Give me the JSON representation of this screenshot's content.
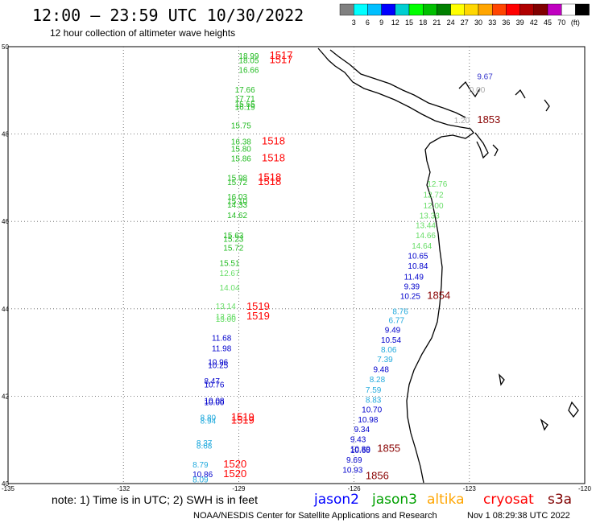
{
  "title": "12:00 – 23:59 UTC 10/30/2022",
  "subtitle": "12 hour collection of altimeter wave heights",
  "legend": {
    "colors": [
      "#808080",
      "#00ffff",
      "#00bfff",
      "#0000ff",
      "#00ced1",
      "#00ff00",
      "#00c000",
      "#008000",
      "#ffff00",
      "#ffd700",
      "#ffa500",
      "#ff4500",
      "#ff0000",
      "#b00000",
      "#800000",
      "#c000c0",
      "#ffffff",
      "#000000"
    ],
    "labels": [
      "3",
      "6",
      "9",
      "12",
      "15",
      "18",
      "21",
      "24",
      "27",
      "30",
      "33",
      "36",
      "39",
      "42",
      "45",
      "70",
      "(ft)"
    ]
  },
  "axes": {
    "lat_labels": [
      "50",
      "48",
      "46",
      "44",
      "42",
      "40"
    ],
    "lon_labels": [
      "-135",
      "-132",
      "-129",
      "-126",
      "-123",
      "-120"
    ]
  },
  "footer": {
    "note": "note: 1) Time is in UTC; 2) SWH is in feet",
    "credit": "NOAA/NESDIS Center for Satellite Applications and Research",
    "timestamp": "Nov  1 08:29:38 UTC 2022",
    "satellites": [
      {
        "name": "jason2",
        "color": "#0000ff"
      },
      {
        "name": "jason3",
        "color": "#00a000"
      },
      {
        "name": "altika",
        "color": "#ffa500"
      },
      {
        "name": "cryosat",
        "color": "#ff0000"
      },
      {
        "name": "s3a",
        "color": "#800000"
      }
    ]
  },
  "wave_labels": [
    {
      "text": "18.99",
      "lon": -129.0,
      "lat": 49.72,
      "color": "#22bb22"
    },
    {
      "text": "18.05",
      "lon": -129.0,
      "lat": 49.62,
      "color": "#22bb22"
    },
    {
      "text": "16.66",
      "lon": -129.0,
      "lat": 49.4,
      "color": "#22bb22"
    },
    {
      "text": "17.66",
      "lon": -129.1,
      "lat": 48.95,
      "color": "#22bb22"
    },
    {
      "text": "17.71",
      "lon": -129.1,
      "lat": 48.75,
      "color": "#22bb22"
    },
    {
      "text": "15.55",
      "lon": -129.1,
      "lat": 48.62,
      "color": "#22bb22"
    },
    {
      "text": "16.19",
      "lon": -129.1,
      "lat": 48.55,
      "color": "#22bb22"
    },
    {
      "text": "15.75",
      "lon": -129.2,
      "lat": 48.13,
      "color": "#22bb22"
    },
    {
      "text": "16.38",
      "lon": -129.2,
      "lat": 47.76,
      "color": "#22bb22"
    },
    {
      "text": "15.80",
      "lon": -129.2,
      "lat": 47.6,
      "color": "#22bb22"
    },
    {
      "text": "15.86",
      "lon": -129.2,
      "lat": 47.38,
      "color": "#22bb22"
    },
    {
      "text": "15.98",
      "lon": -129.3,
      "lat": 46.93,
      "color": "#22bb22"
    },
    {
      "text": "15.72",
      "lon": -129.3,
      "lat": 46.83,
      "color": "#22bb22"
    },
    {
      "text": "16.03",
      "lon": -129.3,
      "lat": 46.5,
      "color": "#22bb22"
    },
    {
      "text": "15.10",
      "lon": -129.3,
      "lat": 46.4,
      "color": "#22bb22"
    },
    {
      "text": "14.33",
      "lon": -129.3,
      "lat": 46.32,
      "color": "#22bb22"
    },
    {
      "text": "14.62",
      "lon": -129.3,
      "lat": 46.08,
      "color": "#22bb22"
    },
    {
      "text": "15.63",
      "lon": -129.4,
      "lat": 45.62,
      "color": "#22bb22"
    },
    {
      "text": "15.23",
      "lon": -129.4,
      "lat": 45.53,
      "color": "#22bb22"
    },
    {
      "text": "15.72",
      "lon": -129.4,
      "lat": 45.33,
      "color": "#22bb22"
    },
    {
      "text": "15.51",
      "lon": -129.5,
      "lat": 44.98,
      "color": "#22bb22"
    },
    {
      "text": "12.67",
      "lon": -129.5,
      "lat": 44.75,
      "color": "#66dd66"
    },
    {
      "text": "14.04",
      "lon": -129.5,
      "lat": 44.42,
      "color": "#66dd66"
    },
    {
      "text": "13.14",
      "lon": -129.6,
      "lat": 44.0,
      "color": "#66dd66"
    },
    {
      "text": "12.36",
      "lon": -129.6,
      "lat": 43.76,
      "color": "#66dd66"
    },
    {
      "text": "13.00",
      "lon": -129.6,
      "lat": 43.7,
      "color": "#66dd66"
    },
    {
      "text": "11.68",
      "lon": -129.7,
      "lat": 43.27,
      "color": "#0000cc"
    },
    {
      "text": "11.98",
      "lon": -129.7,
      "lat": 43.03,
      "color": "#0000cc"
    },
    {
      "text": "10.96",
      "lon": -129.8,
      "lat": 42.72,
      "color": "#0000cc"
    },
    {
      "text": "10.25",
      "lon": -129.8,
      "lat": 42.64,
      "color": "#0000cc"
    },
    {
      "text": "8.47",
      "lon": -129.9,
      "lat": 42.28,
      "color": "#0000cc"
    },
    {
      "text": "10.76",
      "lon": -129.9,
      "lat": 42.2,
      "color": "#0000cc"
    },
    {
      "text": "10.08",
      "lon": -129.9,
      "lat": 41.83,
      "color": "#0000cc"
    },
    {
      "text": "10.00",
      "lon": -129.9,
      "lat": 41.8,
      "color": "#0000cc"
    },
    {
      "text": "8.80",
      "lon": -130.0,
      "lat": 41.45,
      "color": "#22aadd"
    },
    {
      "text": "8.94",
      "lon": -130.0,
      "lat": 41.37,
      "color": "#22aadd"
    },
    {
      "text": "8.37",
      "lon": -130.1,
      "lat": 40.87,
      "color": "#22aadd"
    },
    {
      "text": "8.68",
      "lon": -130.1,
      "lat": 40.8,
      "color": "#22aadd"
    },
    {
      "text": "8.79",
      "lon": -130.2,
      "lat": 40.37,
      "color": "#22aadd"
    },
    {
      "text": "10.86",
      "lon": -130.2,
      "lat": 40.15,
      "color": "#0000cc"
    },
    {
      "text": "8.09",
      "lon": -130.2,
      "lat": 40.03,
      "color": "#22aadd"
    },
    {
      "text": "12.76",
      "lon": -124.1,
      "lat": 46.8,
      "color": "#66dd66"
    },
    {
      "text": "12.72",
      "lon": -124.2,
      "lat": 46.55,
      "color": "#66dd66"
    },
    {
      "text": "12.00",
      "lon": -124.2,
      "lat": 46.3,
      "color": "#66dd66"
    },
    {
      "text": "13.33",
      "lon": -124.3,
      "lat": 46.07,
      "color": "#66dd66"
    },
    {
      "text": "13.44",
      "lon": -124.4,
      "lat": 45.85,
      "color": "#66dd66"
    },
    {
      "text": "14.66",
      "lon": -124.4,
      "lat": 45.62,
      "color": "#66dd66"
    },
    {
      "text": "14.64",
      "lon": -124.5,
      "lat": 45.38,
      "color": "#66dd66"
    },
    {
      "text": "10.65",
      "lon": -124.6,
      "lat": 45.15,
      "color": "#0000cc"
    },
    {
      "text": "10.84",
      "lon": -124.6,
      "lat": 44.92,
      "color": "#0000cc"
    },
    {
      "text": "11.49",
      "lon": -124.7,
      "lat": 44.67,
      "color": "#0000cc"
    },
    {
      "text": "9.39",
      "lon": -124.7,
      "lat": 44.45,
      "color": "#0000cc"
    },
    {
      "text": "10.25",
      "lon": -124.8,
      "lat": 44.23,
      "color": "#0000cc"
    },
    {
      "text": "8.76",
      "lon": -125.0,
      "lat": 43.88,
      "color": "#22aadd"
    },
    {
      "text": "6.77",
      "lon": -125.1,
      "lat": 43.67,
      "color": "#22aadd"
    },
    {
      "text": "9.49",
      "lon": -125.2,
      "lat": 43.45,
      "color": "#0000cc"
    },
    {
      "text": "10.54",
      "lon": -125.3,
      "lat": 43.22,
      "color": "#0000cc"
    },
    {
      "text": "8.06",
      "lon": -125.3,
      "lat": 43.0,
      "color": "#22aadd"
    },
    {
      "text": "7.39",
      "lon": -125.4,
      "lat": 42.78,
      "color": "#22aadd"
    },
    {
      "text": "9.48",
      "lon": -125.5,
      "lat": 42.55,
      "color": "#0000cc"
    },
    {
      "text": "8.28",
      "lon": -125.6,
      "lat": 42.32,
      "color": "#22aadd"
    },
    {
      "text": "7.59",
      "lon": -125.7,
      "lat": 42.08,
      "color": "#22aadd"
    },
    {
      "text": "8.83",
      "lon": -125.7,
      "lat": 41.85,
      "color": "#22aadd"
    },
    {
      "text": "10.70",
      "lon": -125.8,
      "lat": 41.63,
      "color": "#0000cc"
    },
    {
      "text": "10.98",
      "lon": -125.9,
      "lat": 41.4,
      "color": "#0000cc"
    },
    {
      "text": "9.34",
      "lon": -126.0,
      "lat": 41.18,
      "color": "#0000cc"
    },
    {
      "text": "9.43",
      "lon": -126.1,
      "lat": 40.95,
      "color": "#0000cc"
    },
    {
      "text": "10.89",
      "lon": -126.1,
      "lat": 40.73,
      "color": "#0000cc"
    },
    {
      "text": "10.60",
      "lon": -126.1,
      "lat": 40.7,
      "color": "#0000cc"
    },
    {
      "text": "9.69",
      "lon": -126.2,
      "lat": 40.48,
      "color": "#0000cc"
    },
    {
      "text": "10.93",
      "lon": -126.3,
      "lat": 40.25,
      "color": "#0000cc"
    },
    {
      "text": "9.67",
      "lon": -122.8,
      "lat": 49.25,
      "color": "#3333cc"
    },
    {
      "text": "0.00",
      "lon": -123.0,
      "lat": 48.95,
      "color": "#aaaaaa"
    },
    {
      "text": "1.20",
      "lon": -123.4,
      "lat": 48.25,
      "color": "#aaaaaa"
    }
  ],
  "time_labels": [
    {
      "text": "1517",
      "lon": -128.2,
      "lat": 49.72,
      "color": "#ff0000"
    },
    {
      "text": "1517",
      "lon": -128.2,
      "lat": 49.62,
      "color": "#ff0000"
    },
    {
      "text": "1518",
      "lon": -128.4,
      "lat": 47.76,
      "color": "#ff0000"
    },
    {
      "text": "1518",
      "lon": -128.4,
      "lat": 47.38,
      "color": "#ff0000"
    },
    {
      "text": "1518",
      "lon": -128.5,
      "lat": 46.93,
      "color": "#ff0000"
    },
    {
      "text": "1518",
      "lon": -128.5,
      "lat": 46.83,
      "color": "#ff0000"
    },
    {
      "text": "1519",
      "lon": -128.8,
      "lat": 43.98,
      "color": "#ff0000"
    },
    {
      "text": "1519",
      "lon": -128.8,
      "lat": 43.76,
      "color": "#ff0000"
    },
    {
      "text": "1519",
      "lon": -129.2,
      "lat": 41.45,
      "color": "#ff0000"
    },
    {
      "text": "1519",
      "lon": -129.2,
      "lat": 41.37,
      "color": "#ff0000"
    },
    {
      "text": "1520",
      "lon": -129.4,
      "lat": 40.37,
      "color": "#ff0000"
    },
    {
      "text": "1520",
      "lon": -129.4,
      "lat": 40.15,
      "color": "#ff0000"
    },
    {
      "text": "1853",
      "lon": -122.8,
      "lat": 48.25,
      "color": "#880000"
    },
    {
      "text": "1854",
      "lon": -124.1,
      "lat": 44.23,
      "color": "#880000"
    },
    {
      "text": "1855",
      "lon": -125.4,
      "lat": 40.73,
      "color": "#880000"
    },
    {
      "text": "1856",
      "lon": -125.7,
      "lat": 40.1,
      "color": "#880000"
    }
  ]
}
